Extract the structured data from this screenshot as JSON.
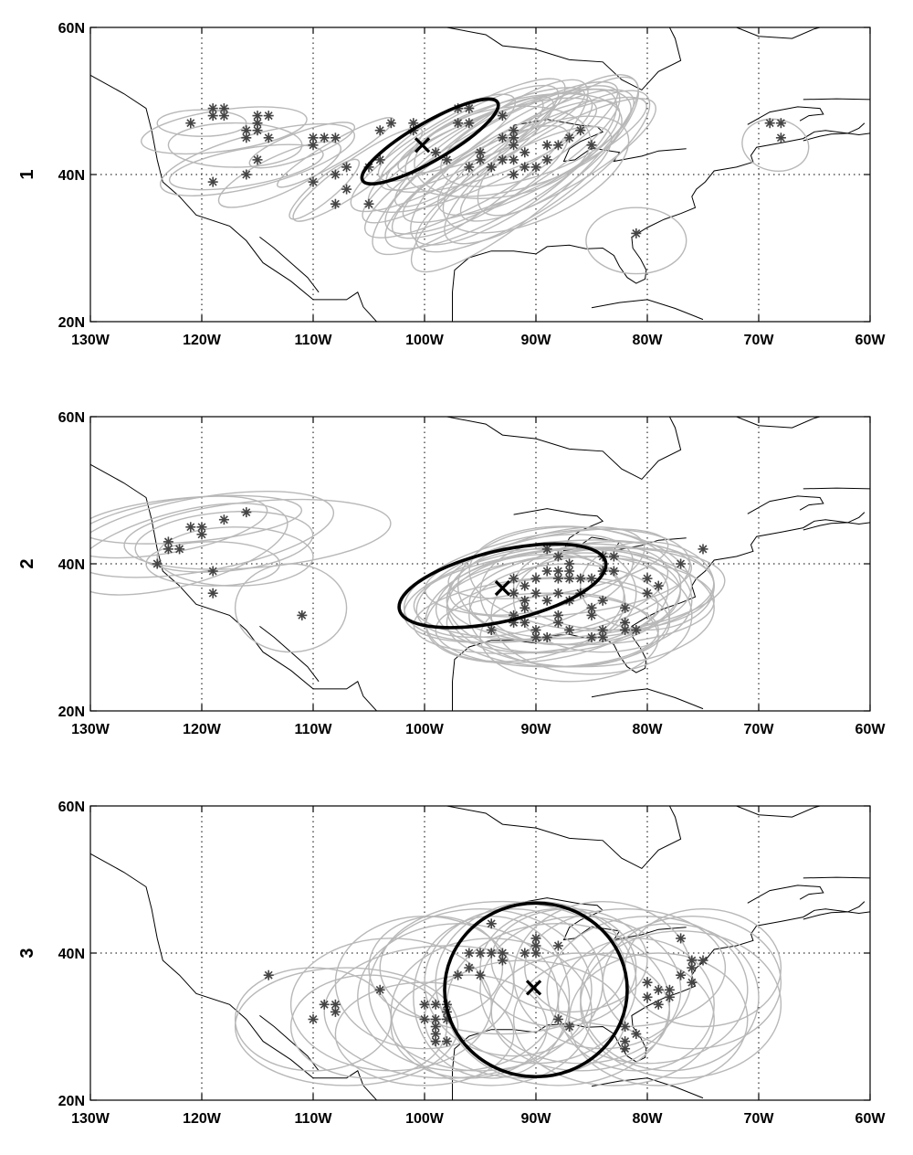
{
  "map": {
    "lon_range": [
      -130,
      -60
    ],
    "lat_range": [
      20,
      60
    ],
    "gridlines": {
      "lon": [
        -120,
        -110,
        -100,
        -90,
        -80,
        -70
      ],
      "lat": [
        40
      ]
    },
    "grid_style": "dotted"
  },
  "x_ticks": [
    "130W",
    "120W",
    "110W",
    "100W",
    "90W",
    "80W",
    "70W",
    "60W"
  ],
  "y_ticks": [
    "20N",
    "40N",
    "60N"
  ],
  "colors": {
    "members": "#b8b8b8",
    "stars": "#444444",
    "centroid": "#000000",
    "coast": "#000000"
  },
  "panels": [
    {
      "label": "1",
      "centroid": {
        "lon": -100.2,
        "lat": 44.0
      },
      "mean_ellipse": {
        "lon": -99.5,
        "lat": 44.5,
        "rx_deg": 7.0,
        "ry_deg": 2.6,
        "angle_deg": -30
      },
      "points": [
        [
          -121,
          47
        ],
        [
          -119,
          49
        ],
        [
          -119,
          48
        ],
        [
          -118,
          49
        ],
        [
          -118,
          48
        ],
        [
          -116,
          46
        ],
        [
          -116,
          45
        ],
        [
          -115,
          48
        ],
        [
          -115,
          47
        ],
        [
          -115,
          46
        ],
        [
          -114,
          48
        ],
        [
          -114,
          45
        ],
        [
          -116,
          40
        ],
        [
          -115,
          42
        ],
        [
          -119,
          39
        ],
        [
          -110,
          45
        ],
        [
          -110,
          44
        ],
        [
          -109,
          45
        ],
        [
          -108,
          45
        ],
        [
          -107,
          41
        ],
        [
          -108,
          40
        ],
        [
          -107,
          38
        ],
        [
          -108,
          36
        ],
        [
          -110,
          39
        ],
        [
          -105,
          36
        ],
        [
          -105,
          41
        ],
        [
          -104,
          46
        ],
        [
          -103,
          47
        ],
        [
          -104,
          42
        ],
        [
          -101,
          47
        ],
        [
          -101,
          46
        ],
        [
          -99,
          43
        ],
        [
          -98,
          42
        ],
        [
          -97,
          47
        ],
        [
          -97,
          49
        ],
        [
          -96,
          49
        ],
        [
          -96,
          47
        ],
        [
          -95,
          43
        ],
        [
          -96,
          41
        ],
        [
          -95,
          42
        ],
        [
          -94,
          41
        ],
        [
          -93,
          42
        ],
        [
          -93,
          48
        ],
        [
          -93,
          45
        ],
        [
          -92,
          46
        ],
        [
          -92,
          45
        ],
        [
          -92,
          44
        ],
        [
          -92,
          42
        ],
        [
          -92,
          40
        ],
        [
          -91,
          43
        ],
        [
          -91,
          41
        ],
        [
          -90,
          41
        ],
        [
          -89,
          44
        ],
        [
          -89,
          42
        ],
        [
          -88,
          44
        ],
        [
          -87,
          45
        ],
        [
          -86,
          46
        ],
        [
          -85,
          44
        ],
        [
          -81,
          32
        ],
        [
          -69,
          47
        ],
        [
          -68,
          47
        ],
        [
          -68,
          45
        ]
      ],
      "members": [
        [
          -118,
          46,
          7.5,
          2.8,
          -8
        ],
        [
          -115,
          42,
          9,
          3.5,
          -15
        ],
        [
          -117,
          44,
          6,
          3,
          0
        ],
        [
          -116,
          41,
          7,
          2.5,
          -10
        ],
        [
          -120,
          47,
          4,
          1.8,
          0
        ],
        [
          -113,
          40,
          6,
          2.5,
          -25
        ],
        [
          -106,
          40,
          7,
          2.2,
          -35
        ],
        [
          -108,
          43,
          6,
          1.5,
          -30
        ],
        [
          -111,
          44,
          5,
          1.8,
          -20
        ],
        [
          -109,
          38,
          4,
          1.5,
          -40
        ],
        [
          -97,
          44,
          11,
          4,
          -30
        ],
        [
          -95,
          43,
          11,
          4.5,
          -25
        ],
        [
          -93,
          42,
          12,
          5,
          -30
        ],
        [
          -92,
          41,
          11,
          5.5,
          -35
        ],
        [
          -96,
          45,
          9,
          3.5,
          -28
        ],
        [
          -94,
          44,
          10,
          4,
          -20
        ],
        [
          -95,
          41,
          12,
          5,
          -38
        ],
        [
          -90,
          43,
          10,
          4.5,
          -30
        ],
        [
          -91,
          42,
          12,
          4,
          -25
        ],
        [
          -88,
          44,
          9,
          5,
          -40
        ],
        [
          -93,
          40,
          12,
          5,
          -30
        ],
        [
          -96,
          43,
          8,
          3,
          -35
        ],
        [
          -97,
          42,
          10,
          3.5,
          -32
        ],
        [
          -94,
          46,
          9,
          3,
          -22
        ],
        [
          -92,
          44,
          10,
          6,
          -15
        ],
        [
          -89,
          41,
          11,
          5,
          -35
        ],
        [
          -90,
          45,
          9,
          5,
          -20
        ],
        [
          -95,
          39,
          9,
          4,
          -30
        ],
        [
          -98,
          45,
          7,
          3,
          -30
        ],
        [
          -91,
          40,
          13,
          5,
          -40
        ],
        [
          -88,
          42,
          10,
          4,
          -30
        ],
        [
          -93,
          43,
          8,
          6,
          -10
        ],
        [
          -92,
          38,
          10,
          4.5,
          -30
        ],
        [
          -90,
          40,
          9,
          6,
          -25
        ],
        [
          -94,
          42,
          13,
          4.5,
          -30
        ],
        [
          -81,
          31,
          4.5,
          4.5,
          0
        ],
        [
          -68.5,
          44,
          3,
          3.5,
          10
        ]
      ]
    },
    {
      "label": "2",
      "centroid": {
        "lon": -93.0,
        "lat": 36.7
      },
      "mean_ellipse": {
        "lon": -93.0,
        "lat": 37.0,
        "rx_deg": 9.5,
        "ry_deg": 4.8,
        "angle_deg": -13
      },
      "points": [
        [
          -120,
          45
        ],
        [
          -121,
          45
        ],
        [
          -120,
          44
        ],
        [
          -118,
          46
        ],
        [
          -116,
          47
        ],
        [
          -123,
          43
        ],
        [
          -123,
          42
        ],
        [
          -122,
          42
        ],
        [
          -124,
          40
        ],
        [
          -119,
          39
        ],
        [
          -119,
          36
        ],
        [
          -111,
          33
        ],
        [
          -94,
          31
        ],
        [
          -92,
          38
        ],
        [
          -92,
          33
        ],
        [
          -91,
          35
        ],
        [
          -91,
          32
        ],
        [
          -92,
          36
        ],
        [
          -91,
          37
        ],
        [
          -90,
          38
        ],
        [
          -90,
          36
        ],
        [
          -90,
          31
        ],
        [
          -90,
          30
        ],
        [
          -89,
          39
        ],
        [
          -89,
          35
        ],
        [
          -89,
          30
        ],
        [
          -88,
          41
        ],
        [
          -88,
          39
        ],
        [
          -88,
          38
        ],
        [
          -88,
          36
        ],
        [
          -88,
          33
        ],
        [
          -88,
          32
        ],
        [
          -87,
          40
        ],
        [
          -87,
          39
        ],
        [
          -87,
          38
        ],
        [
          -87,
          35
        ],
        [
          -87,
          31
        ],
        [
          -86,
          38
        ],
        [
          -86,
          36
        ],
        [
          -85,
          38
        ],
        [
          -85,
          34
        ],
        [
          -85,
          33
        ],
        [
          -85,
          30
        ],
        [
          -84,
          41
        ],
        [
          -84,
          39
        ],
        [
          -84,
          35
        ],
        [
          -84,
          31
        ],
        [
          -84,
          30
        ],
        [
          -83,
          41
        ],
        [
          -83,
          39
        ],
        [
          -82,
          34
        ],
        [
          -82,
          32
        ],
        [
          -82,
          31
        ],
        [
          -81,
          31
        ],
        [
          -80,
          38
        ],
        [
          -80,
          36
        ],
        [
          -79,
          37
        ],
        [
          -77,
          40
        ],
        [
          -75,
          42
        ],
        [
          -89,
          42
        ],
        [
          -91,
          34
        ],
        [
          -92,
          32
        ]
      ],
      "members": [
        [
          -120,
          44,
          12,
          5,
          -10
        ],
        [
          -122,
          42,
          10,
          5,
          -15
        ],
        [
          -118,
          43,
          8,
          4,
          -5
        ],
        [
          -123,
          45,
          9,
          3.5,
          -10
        ],
        [
          -117,
          41,
          7,
          4,
          0
        ],
        [
          -121,
          46,
          10,
          3,
          -5
        ],
        [
          -119,
          40,
          6,
          3,
          0
        ],
        [
          -112,
          34,
          5,
          6,
          0
        ],
        [
          -115,
          44,
          12,
          4.5,
          -5
        ],
        [
          -90,
          36,
          12,
          6,
          -10
        ],
        [
          -88,
          35,
          11,
          7,
          -5
        ],
        [
          -87,
          37,
          10,
          8,
          0
        ],
        [
          -89,
          34,
          11,
          7,
          -10
        ],
        [
          -86,
          35,
          12,
          6,
          0
        ],
        [
          -91,
          37,
          10,
          6,
          -15
        ],
        [
          -88,
          38,
          12,
          5,
          -5
        ],
        [
          -87,
          33,
          9,
          7,
          0
        ],
        [
          -85,
          36,
          11,
          6,
          -5
        ],
        [
          -90,
          35,
          8,
          7,
          0
        ],
        [
          -89,
          37,
          13,
          7,
          -10
        ],
        [
          -86,
          38,
          10,
          7,
          5
        ],
        [
          -88,
          32,
          10,
          6,
          0
        ],
        [
          -84,
          35,
          8,
          7,
          0
        ],
        [
          -91,
          34,
          9,
          7,
          -10
        ],
        [
          -87,
          36,
          14,
          6,
          -5
        ],
        [
          -89,
          39,
          9,
          5,
          -15
        ],
        [
          -86,
          34,
          12,
          8,
          0
        ],
        [
          -88,
          36,
          7,
          7,
          0
        ],
        [
          -90,
          33,
          11,
          5,
          -5
        ],
        [
          -85,
          33,
          9,
          8,
          0
        ],
        [
          -83,
          37,
          9,
          6,
          0
        ],
        [
          -88,
          40,
          10,
          4,
          -10
        ],
        [
          -80,
          37,
          6,
          6,
          0
        ],
        [
          -89,
          31,
          10,
          5,
          0
        ],
        [
          -87,
          30,
          8,
          6,
          0
        ]
      ]
    },
    {
      "label": "3",
      "centroid": {
        "lon": -90.2,
        "lat": 35.3
      },
      "mean_ellipse": {
        "lon": -90.0,
        "lat": 35.0,
        "rx_deg": 8.2,
        "ry_deg": 11.8,
        "angle_deg": 0
      },
      "points": [
        [
          -114,
          37
        ],
        [
          -110,
          31
        ],
        [
          -109,
          33
        ],
        [
          -108,
          33
        ],
        [
          -108,
          32
        ],
        [
          -104,
          35
        ],
        [
          -100,
          33
        ],
        [
          -100,
          31
        ],
        [
          -99,
          33
        ],
        [
          -99,
          31
        ],
        [
          -99,
          30
        ],
        [
          -99,
          29
        ],
        [
          -99,
          28
        ],
        [
          -98,
          33
        ],
        [
          -98,
          32
        ],
        [
          -98,
          31
        ],
        [
          -98,
          28
        ],
        [
          -97,
          37
        ],
        [
          -96,
          40
        ],
        [
          -96,
          38
        ],
        [
          -95,
          40
        ],
        [
          -95,
          37
        ],
        [
          -94,
          44
        ],
        [
          -94,
          40
        ],
        [
          -93,
          40
        ],
        [
          -93,
          39
        ],
        [
          -91,
          40
        ],
        [
          -90,
          42
        ],
        [
          -90,
          41
        ],
        [
          -90,
          40
        ],
        [
          -88,
          41
        ],
        [
          -88,
          31
        ],
        [
          -87,
          30
        ],
        [
          -82,
          30
        ],
        [
          -82,
          28
        ],
        [
          -82,
          27
        ],
        [
          -81,
          29
        ],
        [
          -80,
          36
        ],
        [
          -80,
          34
        ],
        [
          -79,
          35
        ],
        [
          -79,
          33
        ],
        [
          -78,
          35
        ],
        [
          -78,
          34
        ],
        [
          -77,
          42
        ],
        [
          -77,
          37
        ],
        [
          -76,
          39
        ],
        [
          -76,
          38
        ],
        [
          -76,
          36
        ],
        [
          -75,
          39
        ]
      ],
      "members": [
        [
          -103,
          33,
          9,
          9,
          0
        ],
        [
          -107,
          30,
          10,
          8,
          0
        ],
        [
          -97,
          34,
          9,
          10,
          0
        ],
        [
          -95,
          35,
          10,
          11,
          0
        ],
        [
          -92,
          36,
          8,
          10,
          0
        ],
        [
          -100,
          36,
          8,
          9,
          0
        ],
        [
          -98,
          32,
          11,
          9,
          0
        ],
        [
          -94,
          32,
          9,
          10,
          0
        ],
        [
          -90,
          36,
          9,
          11,
          0
        ],
        [
          -88,
          33,
          10,
          11,
          0
        ],
        [
          -86,
          35,
          9,
          10,
          0
        ],
        [
          -84,
          37,
          8,
          10,
          0
        ],
        [
          -88,
          38,
          7,
          8,
          0
        ],
        [
          -93,
          38,
          11,
          9,
          0
        ],
        [
          -80,
          35,
          9,
          10,
          0
        ],
        [
          -78,
          34,
          8,
          10,
          0
        ],
        [
          -76,
          36,
          8,
          9,
          0
        ],
        [
          -81,
          33,
          7,
          9,
          0
        ],
        [
          -83,
          31,
          9,
          9,
          0
        ],
        [
          -75,
          38,
          7,
          8,
          0
        ],
        [
          -82,
          38,
          9,
          8,
          0
        ],
        [
          -110,
          31,
          7,
          7,
          0
        ],
        [
          -105,
          30,
          7,
          7,
          0
        ],
        [
          -100,
          29,
          8,
          7,
          0
        ],
        [
          -96,
          30,
          7,
          7,
          0
        ],
        [
          -91,
          31,
          9,
          8,
          0
        ],
        [
          -86,
          32,
          8,
          8,
          0
        ],
        [
          -79,
          31,
          8,
          9,
          0
        ],
        [
          -77,
          33,
          9,
          10,
          0
        ],
        [
          -94,
          34,
          7,
          11,
          0
        ],
        [
          -99,
          38,
          6,
          7,
          0
        ],
        [
          -87,
          39,
          7,
          7,
          0
        ]
      ]
    }
  ]
}
